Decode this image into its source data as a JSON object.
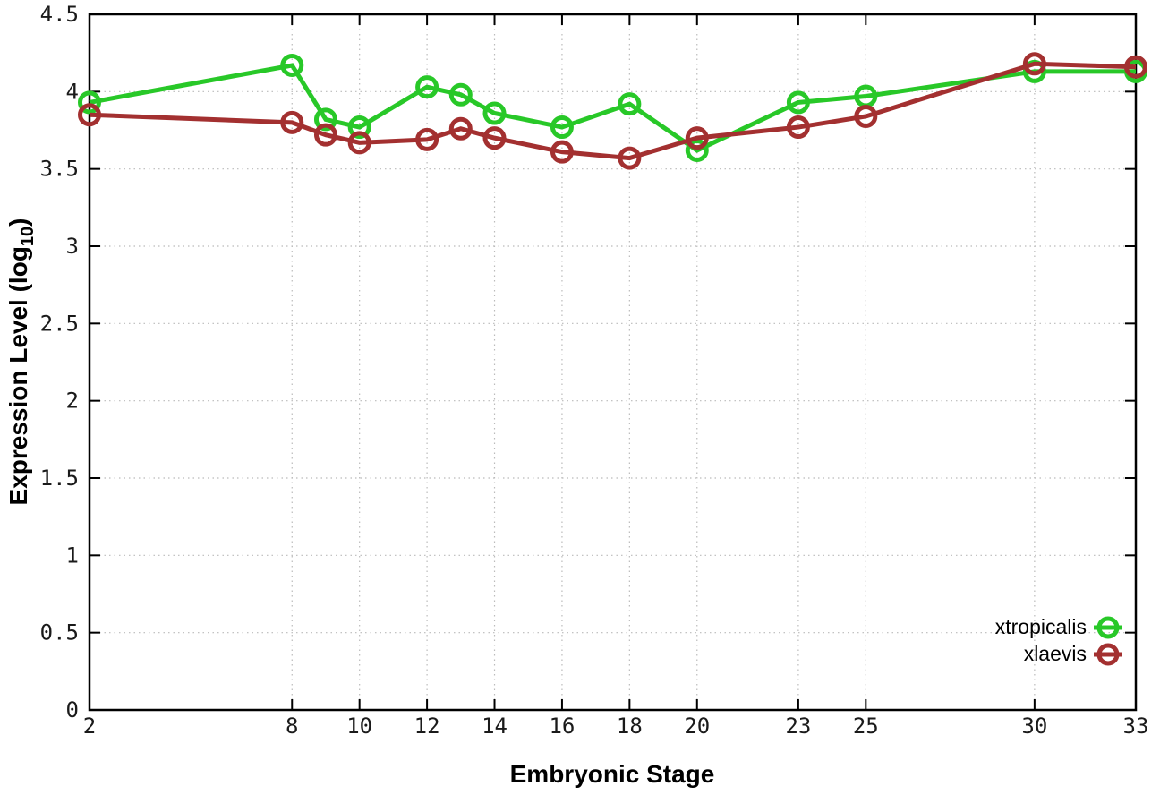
{
  "page": {
    "background": "#ffffff"
  },
  "chart_data": {
    "type": "line",
    "title": "",
    "xlabel": "Embryonic Stage",
    "ylabel": {
      "prefix": "Expression Level (log",
      "sub": "10",
      "suffix": ")"
    },
    "xlim": [
      2,
      33
    ],
    "ylim": [
      0,
      4.5
    ],
    "grid": true,
    "legend_position": "inside-bottom-right",
    "x": [
      2,
      8,
      9,
      10,
      12,
      13,
      14,
      16,
      18,
      20,
      23,
      25,
      30,
      33
    ],
    "xticks": {
      "values": [
        2,
        8,
        10,
        12,
        14,
        16,
        18,
        20,
        23,
        25,
        30,
        33
      ],
      "labels": [
        "2",
        "8",
        "10",
        "12",
        "14",
        "16",
        "18",
        "20",
        "23",
        "25",
        "30",
        "33"
      ]
    },
    "yticks": {
      "values": [
        0,
        0.5,
        1,
        1.5,
        2,
        2.5,
        3,
        3.5,
        4,
        4.5
      ],
      "labels": [
        "0",
        "0.5",
        "1",
        "1.5",
        "2",
        "2.5",
        "3",
        "3.5",
        "4",
        "4.5"
      ]
    },
    "series": [
      {
        "name": "xtropicalis",
        "color": "#28c828",
        "marker": "open-circle",
        "values": [
          3.93,
          4.17,
          3.82,
          3.77,
          4.03,
          3.98,
          3.86,
          3.77,
          3.92,
          3.62,
          3.93,
          3.97,
          4.13,
          4.13
        ]
      },
      {
        "name": "xlaevis",
        "color": "#a33030",
        "marker": "open-circle",
        "values": [
          3.85,
          3.8,
          3.72,
          3.67,
          3.69,
          3.76,
          3.7,
          3.61,
          3.57,
          3.7,
          3.77,
          3.84,
          4.18,
          4.16
        ]
      }
    ],
    "colors": {
      "grid": "#bbbbbb",
      "axis": "#000000",
      "text": "#1a1a1a"
    }
  }
}
